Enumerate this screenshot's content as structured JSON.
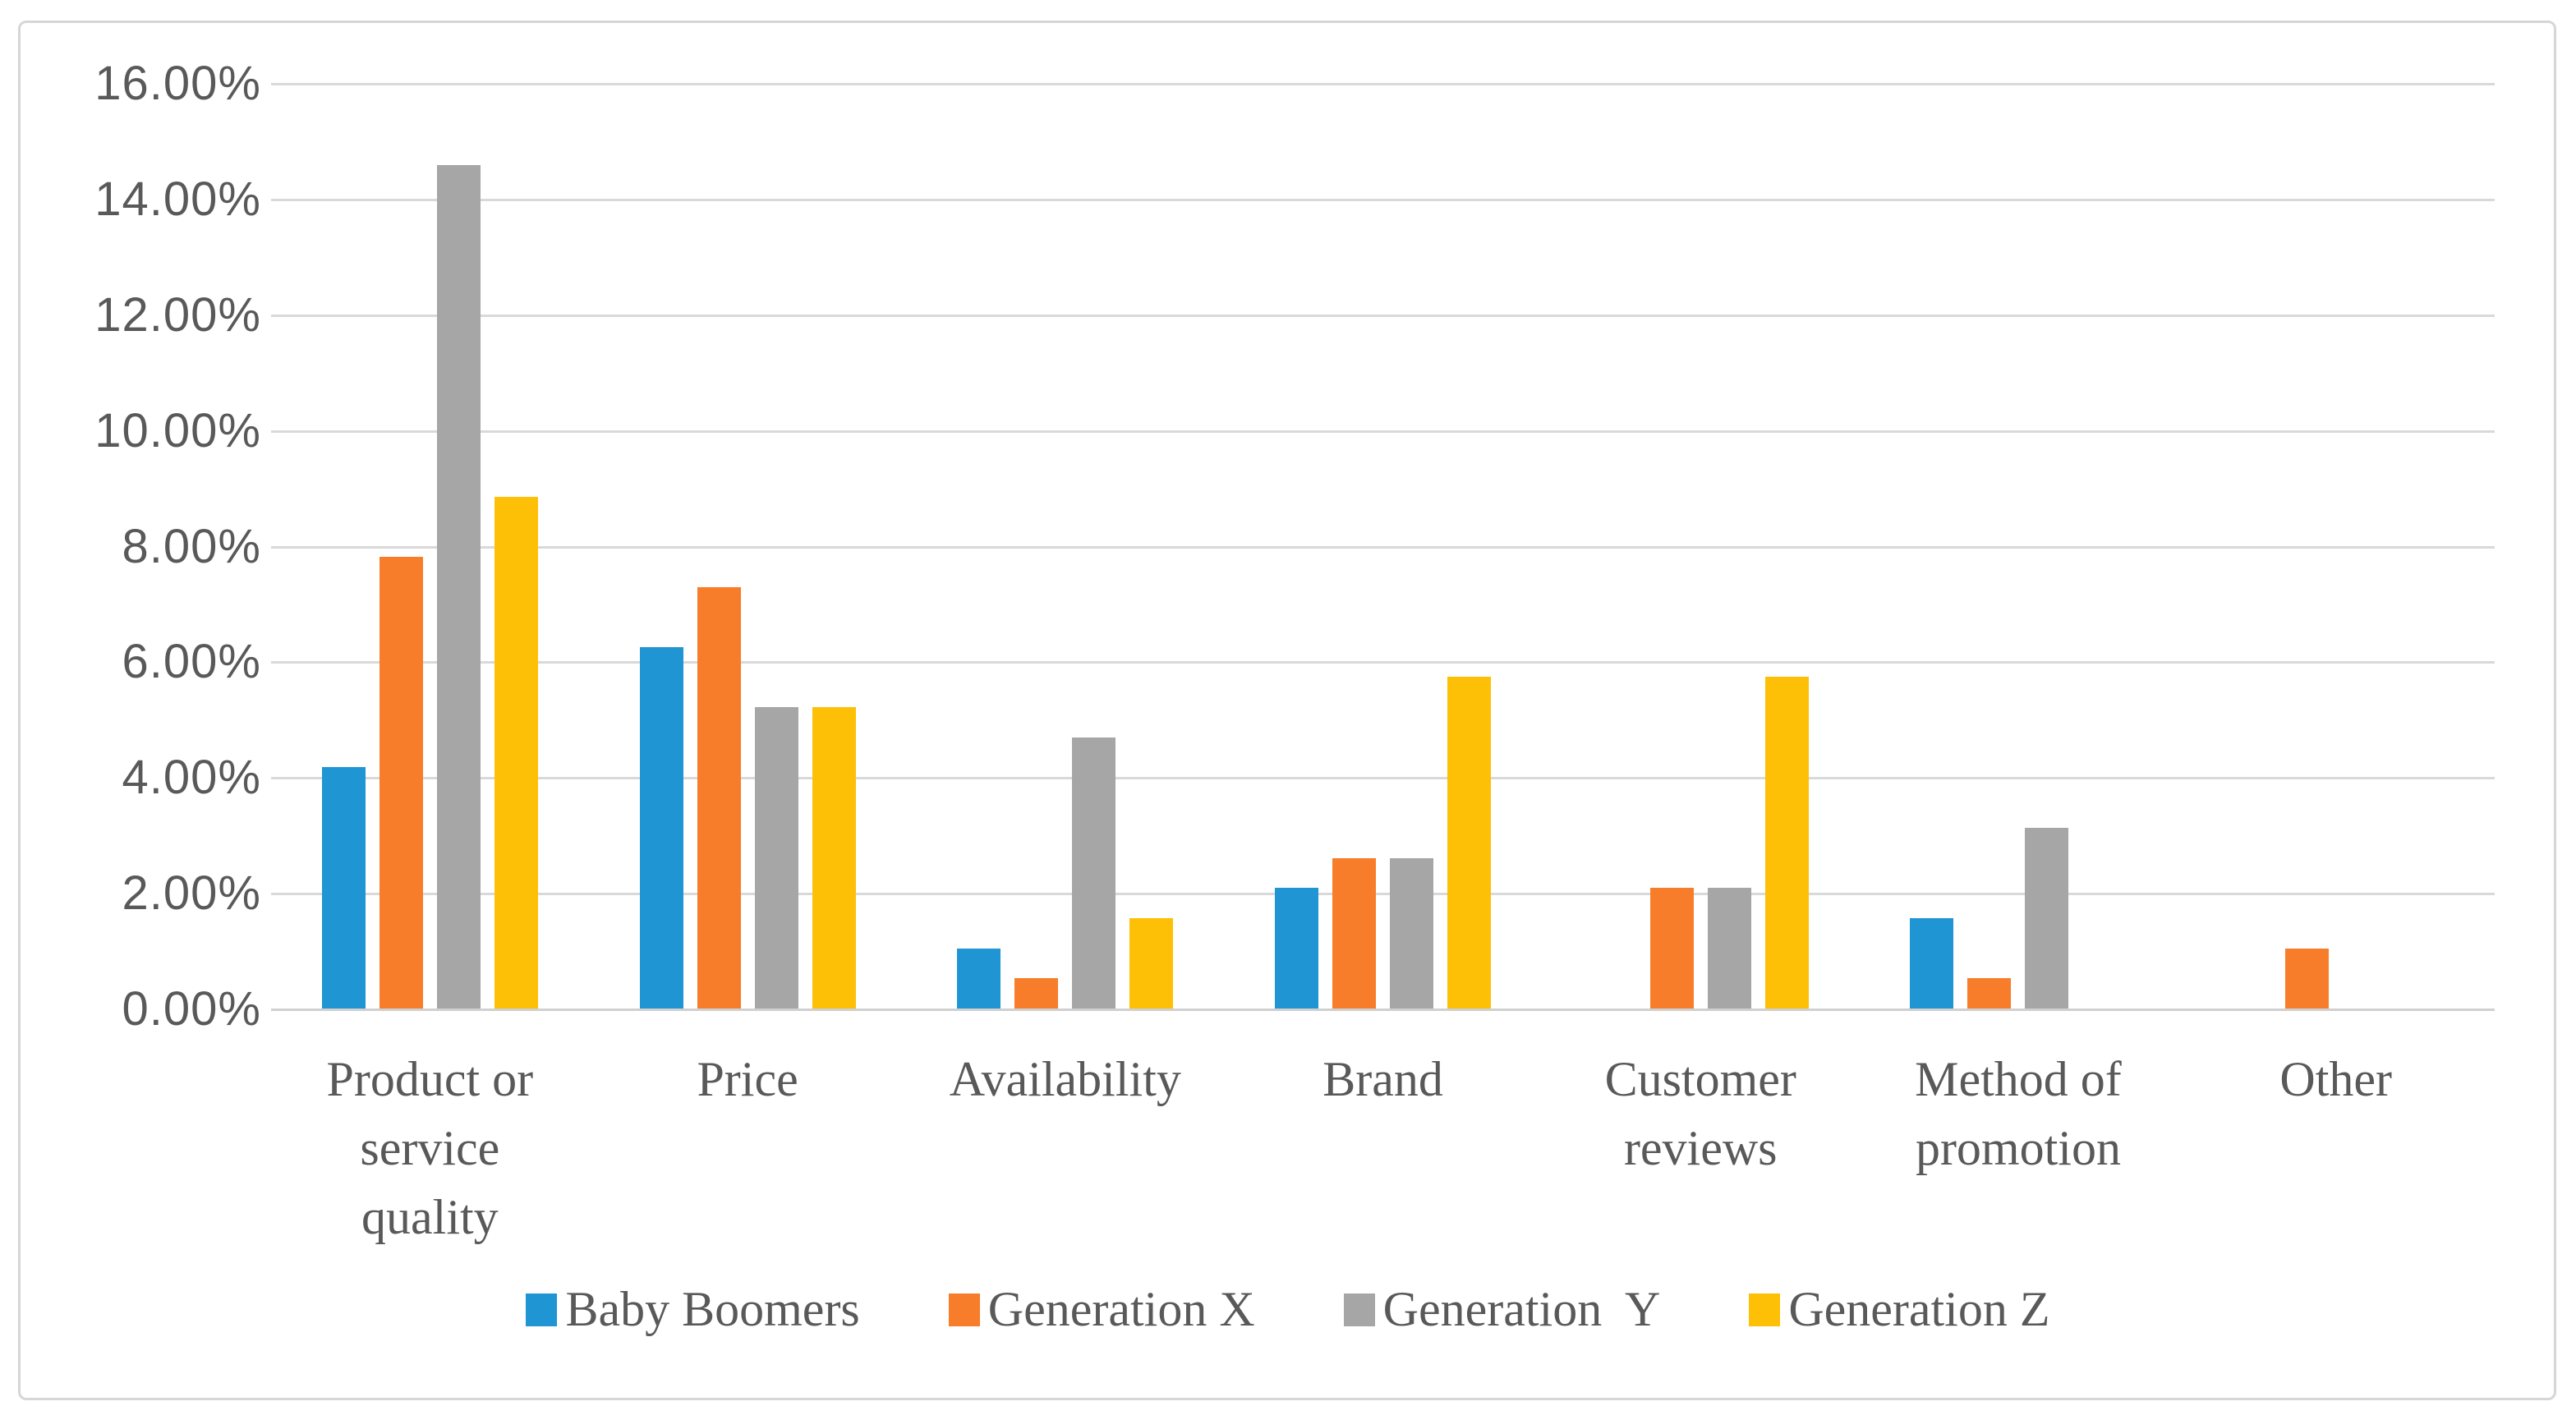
{
  "chart_data": {
    "type": "bar",
    "title": "",
    "categories": [
      "Product or service quality",
      "Price",
      "Availability",
      "Brand",
      "Customer reviews",
      "Method of promotion",
      "Other"
    ],
    "category_display": [
      "Product or\nservice\nquality",
      "Price",
      "Availability",
      "Brand",
      "Customer\nreviews",
      "Method of\npromotion",
      "Other"
    ],
    "series": [
      {
        "name": "Baby Boomers",
        "color": "#1f95d3",
        "values": [
          4.17,
          6.25,
          1.04,
          2.08,
          0,
          1.56,
          0
        ]
      },
      {
        "name": "Generation X",
        "color": "#f87d2b",
        "values": [
          7.81,
          7.29,
          0.52,
          2.6,
          2.08,
          0.52,
          1.04
        ]
      },
      {
        "name": "Generation  Y",
        "color": "#a6a6a6",
        "values": [
          14.58,
          5.21,
          4.69,
          2.6,
          2.08,
          3.13,
          0
        ]
      },
      {
        "name": "Generation Z",
        "color": "#fec006",
        "values": [
          8.85,
          5.21,
          1.56,
          5.73,
          5.73,
          0,
          0
        ]
      }
    ],
    "xlabel": "",
    "ylabel": "",
    "ylim": [
      0,
      16
    ],
    "ytick_step": 2,
    "yticks": [
      "16.00%",
      "14.00%",
      "12.00%",
      "10.00%",
      "8.00%",
      "6.00%",
      "4.00%",
      "2.00%",
      "0.00%"
    ],
    "grid": true,
    "gridline_color": "#d9d9d9",
    "text_color": "#595959",
    "legend_position": "bottom"
  }
}
